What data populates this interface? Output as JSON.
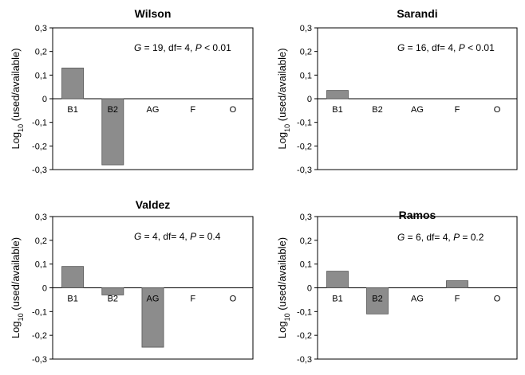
{
  "chart_data": [
    {
      "type": "bar",
      "title": "Wilson",
      "ylabel": "Log10 (used/available)",
      "ylabel_main": "Log",
      "ylabel_sub": "10",
      "ylabel_rest": " (used/available)",
      "categories": [
        "B1",
        "B2",
        "AG",
        "F",
        "O"
      ],
      "values": [
        0.13,
        -0.28,
        0,
        0,
        0
      ],
      "ylim": [
        -0.3,
        0.3
      ],
      "yticks": [
        "0,3",
        "0,2",
        "0,1",
        "0",
        "-0,1",
        "-0,2",
        "-0,3"
      ],
      "stat": {
        "G": "G",
        "g_val": " = 19, df= 4, ",
        "P": "P",
        "p_val": " < 0.01"
      },
      "bar_color": "#8c8c8c"
    },
    {
      "type": "bar",
      "title": "Sarandi",
      "ylabel": "Log10 (used/available)",
      "ylabel_main": "Log",
      "ylabel_sub": "10",
      "ylabel_rest": " (used/available)",
      "categories": [
        "B1",
        "B2",
        "AG",
        "F",
        "O"
      ],
      "values": [
        0.035,
        0,
        0,
        0,
        0
      ],
      "ylim": [
        -0.3,
        0.3
      ],
      "yticks": [
        "0,3",
        "0,2",
        "0,1",
        "0",
        "-0,1",
        "-0,2",
        "-0,3"
      ],
      "stat": {
        "G": "G",
        "g_val": " = 16, df= 4, ",
        "P": "P",
        "p_val": " < 0.01"
      },
      "bar_color": "#8c8c8c"
    },
    {
      "type": "bar",
      "title": "Valdez",
      "ylabel": "Log10 (used/available)",
      "ylabel_main": "Log",
      "ylabel_sub": "10",
      "ylabel_rest": " (used/available)",
      "categories": [
        "B1",
        "B2",
        "AG",
        "F",
        "O"
      ],
      "values": [
        0.09,
        -0.03,
        -0.25,
        0,
        0
      ],
      "ylim": [
        -0.3,
        0.3
      ],
      "yticks": [
        "0,3",
        "0,2",
        "0,1",
        "0",
        "-0,1",
        "-0,2",
        "-0,3"
      ],
      "stat": {
        "G": "G",
        "g_val": " = 4, df= 4, ",
        "P": "P",
        "p_val": " = 0.4"
      },
      "bar_color": "#8c8c8c"
    },
    {
      "type": "bar",
      "title": "Ramos",
      "ylabel": "Log10 (used/available)",
      "ylabel_main": "Log",
      "ylabel_sub": "10",
      "ylabel_rest": " (used/available)",
      "categories": [
        "B1",
        "B2",
        "AG",
        "F",
        "O"
      ],
      "values": [
        0.07,
        -0.11,
        0,
        0.03,
        0
      ],
      "ylim": [
        -0.3,
        0.3
      ],
      "yticks": [
        "0,3",
        "0,2",
        "0,1",
        "0",
        "-0,1",
        "-0,2",
        "-0,3"
      ],
      "stat": {
        "G": "G",
        "g_val": " = 6, df= 4, ",
        "P": "P",
        "p_val": " = 0.2"
      },
      "bar_color": "#8c8c8c"
    }
  ]
}
